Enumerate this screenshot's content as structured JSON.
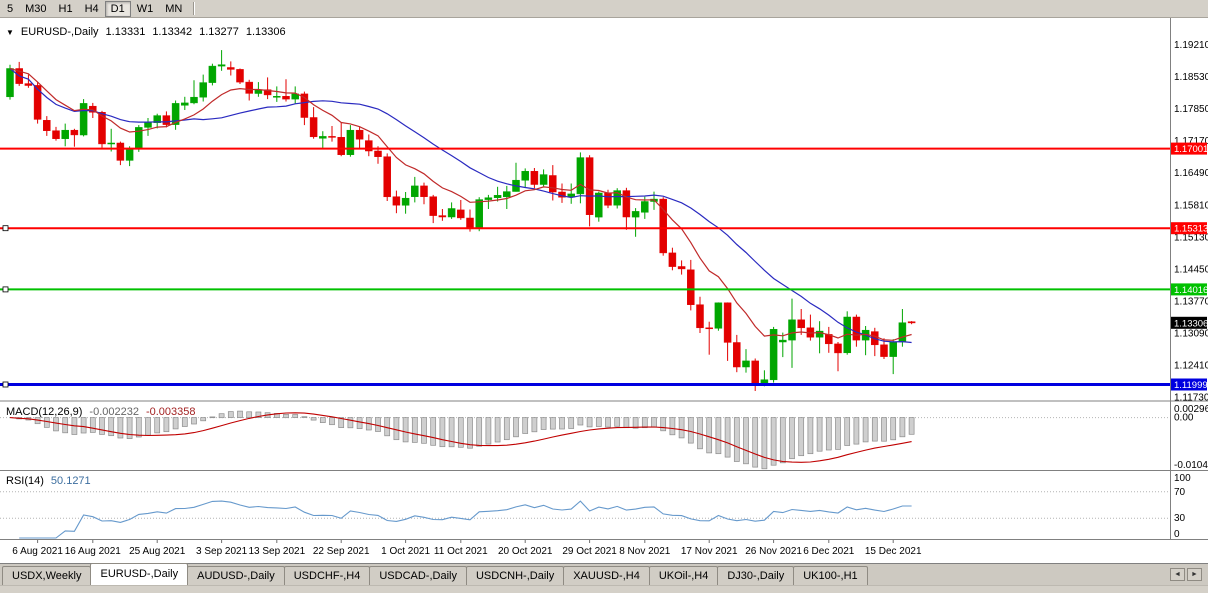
{
  "toolbar": {
    "timeframes": [
      {
        "label": "5",
        "active": false
      },
      {
        "label": "M30",
        "active": false
      },
      {
        "label": "H1",
        "active": false
      },
      {
        "label": "H4",
        "active": false
      },
      {
        "label": "D1",
        "active": true
      },
      {
        "label": "W1",
        "active": false
      },
      {
        "label": "MN",
        "active": false
      }
    ]
  },
  "chart_info": {
    "dropdown_icon": "▼",
    "symbol": "EURUSD-,Daily",
    "open": "1.13331",
    "high": "1.13342",
    "low": "1.13277",
    "close": "1.13306"
  },
  "indicators": {
    "macd": {
      "label": "MACD(12,26,9)",
      "value_main": "-0.002232",
      "value_signal": "-0.003358",
      "ticks": [
        "0.002966",
        "0.00",
        "-0.01042"
      ]
    },
    "rsi": {
      "label": "RSI(14)",
      "value": "50.1271",
      "ticks": [
        "100",
        "70",
        "30",
        "0"
      ]
    }
  },
  "tabbar": {
    "scroll_left": "◄",
    "scroll_right": "►",
    "tabs": [
      {
        "label": "USDX,Weekly",
        "active": false
      },
      {
        "label": "EURUSD-,Daily",
        "active": true
      },
      {
        "label": "AUDUSD-,Daily",
        "active": false
      },
      {
        "label": "USDCHF-,H4",
        "active": false
      },
      {
        "label": "USDCAD-,Daily",
        "active": false
      },
      {
        "label": "USDCNH-,Daily",
        "active": false
      },
      {
        "label": "XAUUSD-,H4",
        "active": false
      },
      {
        "label": "UKOil-,H4",
        "active": false
      },
      {
        "label": "DJ30-,Daily",
        "active": false
      },
      {
        "label": "UK100-,H1",
        "active": false
      }
    ]
  },
  "colors": {
    "candle_up": "#00A600",
    "candle_down": "#E30000",
    "macd_hist_fill": "#CFCFCF",
    "macd_hist_stroke": "#8C8C8C",
    "macd_signal": "#C00000",
    "rsi_line": "#6699CC",
    "pane_divider": "#808080",
    "axis_text": "#000000"
  },
  "chart_data": {
    "type": "candlestick",
    "symbol": "EURUSD-",
    "timeframe": "Daily",
    "title": "EURUSD-,Daily",
    "y_axis": {
      "max": 1.1977,
      "min": 1.1167,
      "ticks": [
        "1.19210",
        "1.18530",
        "1.17850",
        "1.17170",
        "1.16490",
        "1.15810",
        "1.15130",
        "1.14450",
        "1.13770",
        "1.13090",
        "1.12410",
        "1.11730"
      ]
    },
    "x_labels": [
      "6 Aug 2021",
      "16 Aug 2021",
      "25 Aug 2021",
      "3 Sep 2021",
      "13 Sep 2021",
      "22 Sep 2021",
      "1 Oct 2021",
      "11 Oct 2021",
      "20 Oct 2021",
      "29 Oct 2021",
      "8 Nov 2021",
      "17 Nov 2021",
      "26 Nov 2021",
      "6 Dec 2021",
      "15 Dec 2021"
    ],
    "hlines": [
      {
        "price": 1.17001,
        "label": "1.17001",
        "color": "#FF0000",
        "width": 2,
        "selected": false
      },
      {
        "price": 1.15313,
        "label": "1.15313",
        "color": "#FF0000",
        "width": 2,
        "selected": true
      },
      {
        "price": 1.14016,
        "label": "1.14016",
        "color": "#00C100",
        "width": 2,
        "selected": true
      },
      {
        "price": 1.11999,
        "label": "1.11999",
        "color": "#0000E0",
        "width": 3,
        "selected": true
      }
    ],
    "current_price": {
      "price": 1.13306,
      "label": "1.13306",
      "bg": "#000000"
    },
    "moving_averages": [
      {
        "type": "sma",
        "period": 21,
        "color": "#2A2AC0"
      },
      {
        "type": "ema",
        "period": 10,
        "color": "#C02A2A"
      }
    ],
    "macd_params": [
      12,
      26,
      9
    ],
    "macd_range": {
      "max": 0.002966,
      "min": -0.01042
    },
    "rsi_period": 14,
    "rsi_levels": [
      70,
      30
    ],
    "candles": [
      {
        "d": "3 Aug 2021",
        "o": 1.181,
        "h": 1.1878,
        "l": 1.1804,
        "c": 1.187
      },
      {
        "d": "4 Aug 2021",
        "o": 1.187,
        "h": 1.1884,
        "l": 1.1833,
        "c": 1.1838
      },
      {
        "d": "5 Aug 2021",
        "o": 1.1838,
        "h": 1.1857,
        "l": 1.1829,
        "c": 1.1834
      },
      {
        "d": "6 Aug 2021",
        "o": 1.1834,
        "h": 1.1841,
        "l": 1.1753,
        "c": 1.1762
      },
      {
        "d": "9 Aug 2021",
        "o": 1.176,
        "h": 1.1769,
        "l": 1.1727,
        "c": 1.1738
      },
      {
        "d": "10 Aug 2021",
        "o": 1.1738,
        "h": 1.1746,
        "l": 1.1717,
        "c": 1.1721
      },
      {
        "d": "11 Aug 2021",
        "o": 1.1721,
        "h": 1.1753,
        "l": 1.1705,
        "c": 1.1739
      },
      {
        "d": "12 Aug 2021",
        "o": 1.1739,
        "h": 1.1742,
        "l": 1.1704,
        "c": 1.1729
      },
      {
        "d": "13 Aug 2021",
        "o": 1.1729,
        "h": 1.1805,
        "l": 1.1726,
        "c": 1.1796
      },
      {
        "d": "16 Aug 2021",
        "o": 1.179,
        "h": 1.1797,
        "l": 1.1765,
        "c": 1.1777
      },
      {
        "d": "17 Aug 2021",
        "o": 1.1777,
        "h": 1.178,
        "l": 1.1702,
        "c": 1.171
      },
      {
        "d": "18 Aug 2021",
        "o": 1.171,
        "h": 1.1742,
        "l": 1.1694,
        "c": 1.1712
      },
      {
        "d": "19 Aug 2021",
        "o": 1.1712,
        "h": 1.1715,
        "l": 1.1665,
        "c": 1.1675
      },
      {
        "d": "20 Aug 2021",
        "o": 1.1675,
        "h": 1.1705,
        "l": 1.1663,
        "c": 1.1698
      },
      {
        "d": "23 Aug 2021",
        "o": 1.17,
        "h": 1.175,
        "l": 1.1693,
        "c": 1.1745
      },
      {
        "d": "24 Aug 2021",
        "o": 1.1745,
        "h": 1.1765,
        "l": 1.1727,
        "c": 1.1755
      },
      {
        "d": "25 Aug 2021",
        "o": 1.1755,
        "h": 1.1774,
        "l": 1.1743,
        "c": 1.177
      },
      {
        "d": "26 Aug 2021",
        "o": 1.177,
        "h": 1.1779,
        "l": 1.1745,
        "c": 1.1751
      },
      {
        "d": "27 Aug 2021",
        "o": 1.1751,
        "h": 1.1802,
        "l": 1.174,
        "c": 1.1796
      },
      {
        "d": "30 Aug 2021",
        "o": 1.1792,
        "h": 1.181,
        "l": 1.1782,
        "c": 1.1797
      },
      {
        "d": "31 Aug 2021",
        "o": 1.1797,
        "h": 1.1845,
        "l": 1.1794,
        "c": 1.1809
      },
      {
        "d": "1 Sep 2021",
        "o": 1.1809,
        "h": 1.1857,
        "l": 1.18,
        "c": 1.184
      },
      {
        "d": "2 Sep 2021",
        "o": 1.184,
        "h": 1.188,
        "l": 1.1834,
        "c": 1.1875
      },
      {
        "d": "3 Sep 2021",
        "o": 1.1875,
        "h": 1.1909,
        "l": 1.1865,
        "c": 1.1878
      },
      {
        "d": "6 Sep 2021",
        "o": 1.1872,
        "h": 1.1885,
        "l": 1.1855,
        "c": 1.1868
      },
      {
        "d": "7 Sep 2021",
        "o": 1.1868,
        "h": 1.187,
        "l": 1.1837,
        "c": 1.1841
      },
      {
        "d": "8 Sep 2021",
        "o": 1.1841,
        "h": 1.1846,
        "l": 1.1802,
        "c": 1.1817
      },
      {
        "d": "9 Sep 2021",
        "o": 1.1817,
        "h": 1.1841,
        "l": 1.181,
        "c": 1.1825
      },
      {
        "d": "10 Sep 2021",
        "o": 1.1825,
        "h": 1.1851,
        "l": 1.1805,
        "c": 1.1814
      },
      {
        "d": "13 Sep 2021",
        "o": 1.181,
        "h": 1.1832,
        "l": 1.1799,
        "c": 1.1811
      },
      {
        "d": "14 Sep 2021",
        "o": 1.1811,
        "h": 1.1847,
        "l": 1.18,
        "c": 1.1805
      },
      {
        "d": "15 Sep 2021",
        "o": 1.1805,
        "h": 1.1832,
        "l": 1.1795,
        "c": 1.1816
      },
      {
        "d": "16 Sep 2021",
        "o": 1.1816,
        "h": 1.1821,
        "l": 1.175,
        "c": 1.1766
      },
      {
        "d": "17 Sep 2021",
        "o": 1.1766,
        "h": 1.1788,
        "l": 1.1721,
        "c": 1.1725
      },
      {
        "d": "20 Sep 2021",
        "o": 1.1722,
        "h": 1.1737,
        "l": 1.17,
        "c": 1.1726
      },
      {
        "d": "21 Sep 2021",
        "o": 1.1726,
        "h": 1.1748,
        "l": 1.1715,
        "c": 1.1724
      },
      {
        "d": "22 Sep 2021",
        "o": 1.1724,
        "h": 1.1756,
        "l": 1.1684,
        "c": 1.1687
      },
      {
        "d": "23 Sep 2021",
        "o": 1.1687,
        "h": 1.175,
        "l": 1.1683,
        "c": 1.1739
      },
      {
        "d": "24 Sep 2021",
        "o": 1.1739,
        "h": 1.1747,
        "l": 1.1701,
        "c": 1.172
      },
      {
        "d": "27 Sep 2021",
        "o": 1.1717,
        "h": 1.173,
        "l": 1.1684,
        "c": 1.1695
      },
      {
        "d": "28 Sep 2021",
        "o": 1.1695,
        "h": 1.1705,
        "l": 1.1668,
        "c": 1.1683
      },
      {
        "d": "29 Sep 2021",
        "o": 1.1683,
        "h": 1.169,
        "l": 1.1589,
        "c": 1.1598
      },
      {
        "d": "30 Sep 2021",
        "o": 1.1598,
        "h": 1.1611,
        "l": 1.1563,
        "c": 1.158
      },
      {
        "d": "1 Oct 2021",
        "o": 1.158,
        "h": 1.1608,
        "l": 1.1562,
        "c": 1.1595
      },
      {
        "d": "4 Oct 2021",
        "o": 1.1598,
        "h": 1.164,
        "l": 1.1586,
        "c": 1.1621
      },
      {
        "d": "5 Oct 2021",
        "o": 1.1621,
        "h": 1.1628,
        "l": 1.1582,
        "c": 1.1598
      },
      {
        "d": "6 Oct 2021",
        "o": 1.1598,
        "h": 1.1602,
        "l": 1.1542,
        "c": 1.1558
      },
      {
        "d": "7 Oct 2021",
        "o": 1.1558,
        "h": 1.1572,
        "l": 1.1547,
        "c": 1.1555
      },
      {
        "d": "8 Oct 2021",
        "o": 1.1555,
        "h": 1.1586,
        "l": 1.1551,
        "c": 1.1573
      },
      {
        "d": "11 Oct 2021",
        "o": 1.157,
        "h": 1.1591,
        "l": 1.1549,
        "c": 1.1553
      },
      {
        "d": "12 Oct 2021",
        "o": 1.1553,
        "h": 1.1571,
        "l": 1.1524,
        "c": 1.153
      },
      {
        "d": "13 Oct 2021",
        "o": 1.153,
        "h": 1.1597,
        "l": 1.1525,
        "c": 1.1592
      },
      {
        "d": "14 Oct 2021",
        "o": 1.1592,
        "h": 1.1602,
        "l": 1.1572,
        "c": 1.1596
      },
      {
        "d": "15 Oct 2021",
        "o": 1.1596,
        "h": 1.1619,
        "l": 1.1588,
        "c": 1.1601
      },
      {
        "d": "18 Oct 2021",
        "o": 1.1598,
        "h": 1.1621,
        "l": 1.1572,
        "c": 1.1609
      },
      {
        "d": "19 Oct 2021",
        "o": 1.1609,
        "h": 1.167,
        "l": 1.1609,
        "c": 1.1633
      },
      {
        "d": "20 Oct 2021",
        "o": 1.1633,
        "h": 1.1658,
        "l": 1.1617,
        "c": 1.1652
      },
      {
        "d": "21 Oct 2021",
        "o": 1.1652,
        "h": 1.1659,
        "l": 1.1616,
        "c": 1.1624
      },
      {
        "d": "22 Oct 2021",
        "o": 1.1624,
        "h": 1.1656,
        "l": 1.162,
        "c": 1.1645
      },
      {
        "d": "25 Oct 2021",
        "o": 1.1643,
        "h": 1.1665,
        "l": 1.159,
        "c": 1.1608
      },
      {
        "d": "26 Oct 2021",
        "o": 1.1608,
        "h": 1.1626,
        "l": 1.1585,
        "c": 1.1597
      },
      {
        "d": "27 Oct 2021",
        "o": 1.1597,
        "h": 1.1626,
        "l": 1.1583,
        "c": 1.1604
      },
      {
        "d": "28 Oct 2021",
        "o": 1.1604,
        "h": 1.1692,
        "l": 1.1584,
        "c": 1.1681
      },
      {
        "d": "29 Oct 2021",
        "o": 1.1681,
        "h": 1.1686,
        "l": 1.1535,
        "c": 1.156
      },
      {
        "d": "1 Nov 2021",
        "o": 1.1555,
        "h": 1.1609,
        "l": 1.1545,
        "c": 1.1606
      },
      {
        "d": "2 Nov 2021",
        "o": 1.1606,
        "h": 1.1613,
        "l": 1.1574,
        "c": 1.158
      },
      {
        "d": "3 Nov 2021",
        "o": 1.158,
        "h": 1.1616,
        "l": 1.1573,
        "c": 1.1611
      },
      {
        "d": "4 Nov 2021",
        "o": 1.1611,
        "h": 1.1617,
        "l": 1.1528,
        "c": 1.1555
      },
      {
        "d": "5 Nov 2021",
        "o": 1.1555,
        "h": 1.1574,
        "l": 1.1513,
        "c": 1.1567
      },
      {
        "d": "8 Nov 2021",
        "o": 1.1565,
        "h": 1.1598,
        "l": 1.1551,
        "c": 1.1588
      },
      {
        "d": "9 Nov 2021",
        "o": 1.1588,
        "h": 1.1609,
        "l": 1.157,
        "c": 1.1593
      },
      {
        "d": "10 Nov 2021",
        "o": 1.1593,
        "h": 1.1597,
        "l": 1.1473,
        "c": 1.1479
      },
      {
        "d": "11 Nov 2021",
        "o": 1.1479,
        "h": 1.149,
        "l": 1.1442,
        "c": 1.145
      },
      {
        "d": "12 Nov 2021",
        "o": 1.145,
        "h": 1.1463,
        "l": 1.1433,
        "c": 1.1445
      },
      {
        "d": "15 Nov 2021",
        "o": 1.1443,
        "h": 1.1464,
        "l": 1.1357,
        "c": 1.1369
      },
      {
        "d": "16 Nov 2021",
        "o": 1.1369,
        "h": 1.1386,
        "l": 1.1309,
        "c": 1.132
      },
      {
        "d": "17 Nov 2021",
        "o": 1.132,
        "h": 1.1333,
        "l": 1.1263,
        "c": 1.1319
      },
      {
        "d": "18 Nov 2021",
        "o": 1.1319,
        "h": 1.1374,
        "l": 1.1314,
        "c": 1.1373
      },
      {
        "d": "19 Nov 2021",
        "o": 1.1373,
        "h": 1.1374,
        "l": 1.125,
        "c": 1.1289
      },
      {
        "d": "22 Nov 2021",
        "o": 1.1289,
        "h": 1.1305,
        "l": 1.1226,
        "c": 1.1237
      },
      {
        "d": "23 Nov 2021",
        "o": 1.1237,
        "h": 1.1275,
        "l": 1.1225,
        "c": 1.125
      },
      {
        "d": "24 Nov 2021",
        "o": 1.125,
        "h": 1.1255,
        "l": 1.1186,
        "c": 1.1199
      },
      {
        "d": "25 Nov 2021",
        "o": 1.1199,
        "h": 1.123,
        "l": 1.1196,
        "c": 1.121
      },
      {
        "d": "26 Nov 2021",
        "o": 1.121,
        "h": 1.1322,
        "l": 1.1204,
        "c": 1.1317
      },
      {
        "d": "29 Nov 2021",
        "o": 1.129,
        "h": 1.131,
        "l": 1.1258,
        "c": 1.1294
      },
      {
        "d": "30 Nov 2021",
        "o": 1.1294,
        "h": 1.1382,
        "l": 1.1235,
        "c": 1.1337
      },
      {
        "d": "1 Dec 2021",
        "o": 1.1337,
        "h": 1.136,
        "l": 1.1305,
        "c": 1.132
      },
      {
        "d": "2 Dec 2021",
        "o": 1.132,
        "h": 1.1348,
        "l": 1.1293,
        "c": 1.13
      },
      {
        "d": "3 Dec 2021",
        "o": 1.13,
        "h": 1.1334,
        "l": 1.1266,
        "c": 1.1313
      },
      {
        "d": "6 Dec 2021",
        "o": 1.1306,
        "h": 1.1322,
        "l": 1.1267,
        "c": 1.1286
      },
      {
        "d": "7 Dec 2021",
        "o": 1.1286,
        "h": 1.129,
        "l": 1.1228,
        "c": 1.1267
      },
      {
        "d": "8 Dec 2021",
        "o": 1.1267,
        "h": 1.1355,
        "l": 1.1263,
        "c": 1.1343
      },
      {
        "d": "9 Dec 2021",
        "o": 1.1343,
        "h": 1.1348,
        "l": 1.128,
        "c": 1.1294
      },
      {
        "d": "10 Dec 2021",
        "o": 1.1294,
        "h": 1.1324,
        "l": 1.1262,
        "c": 1.1315
      },
      {
        "d": "13 Dec 2021",
        "o": 1.1312,
        "h": 1.132,
        "l": 1.126,
        "c": 1.1284
      },
      {
        "d": "14 Dec 2021",
        "o": 1.1284,
        "h": 1.1298,
        "l": 1.1254,
        "c": 1.1259
      },
      {
        "d": "15 Dec 2021",
        "o": 1.1259,
        "h": 1.1296,
        "l": 1.1222,
        "c": 1.129
      },
      {
        "d": "16 Dec 2021",
        "o": 1.129,
        "h": 1.136,
        "l": 1.128,
        "c": 1.1331
      },
      {
        "d": "17 Dec 2021",
        "o": 1.13331,
        "h": 1.13342,
        "l": 1.13277,
        "c": 1.13306
      }
    ]
  }
}
